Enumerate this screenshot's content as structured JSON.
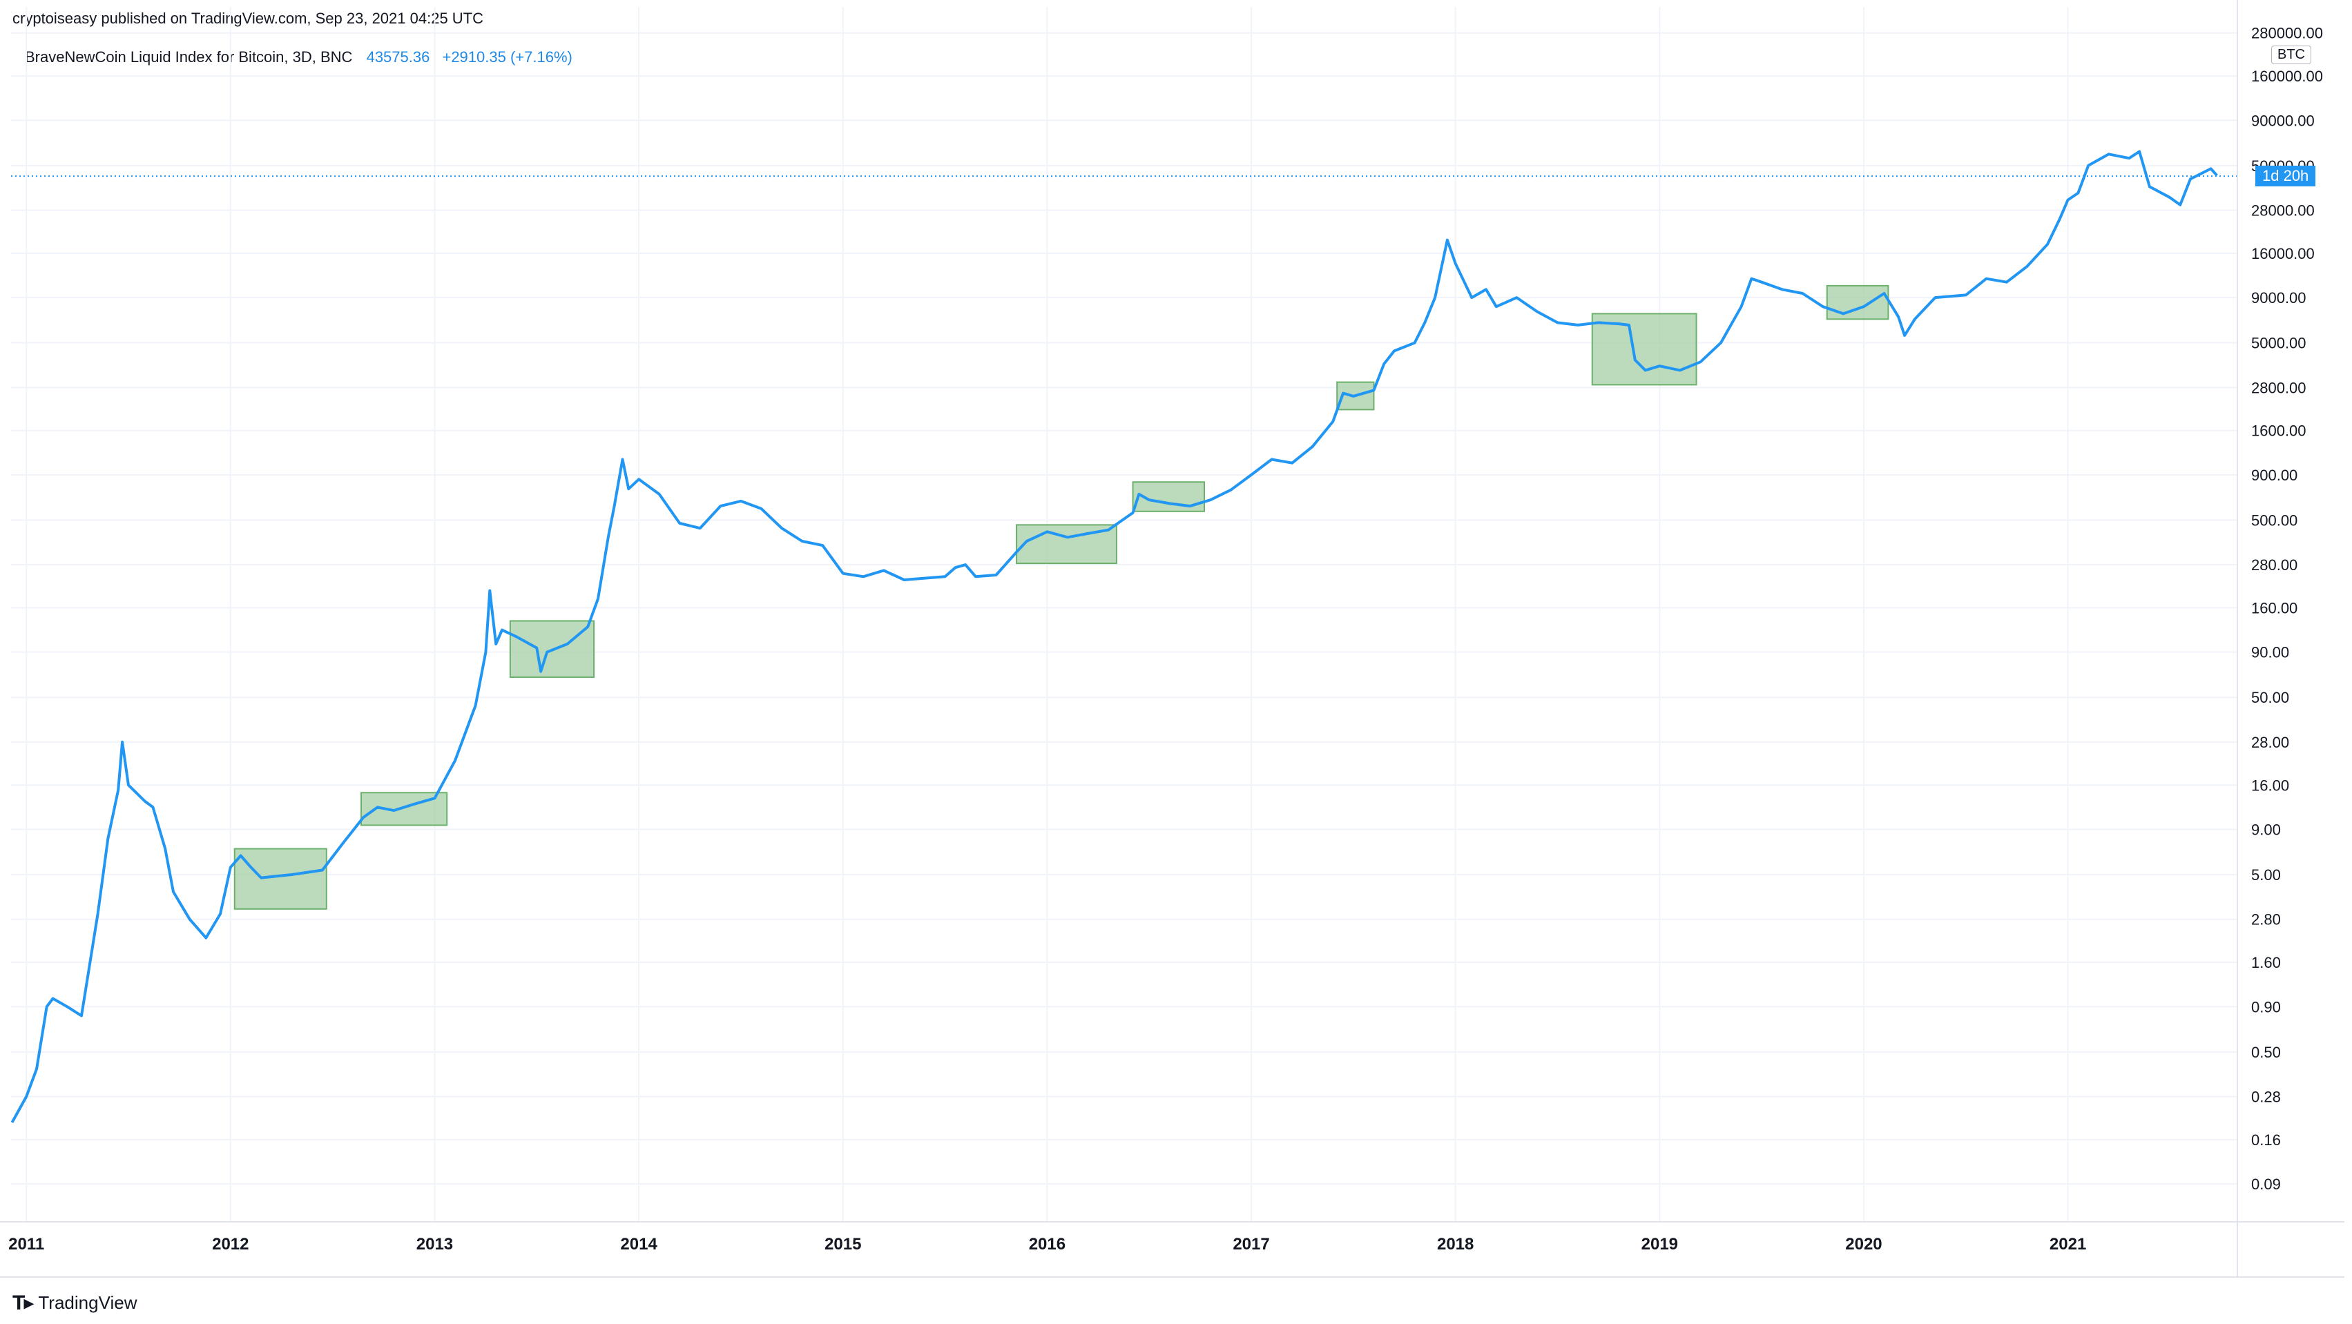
{
  "header": {
    "published_line": "cryptoiseasy published on TradingView.com, Sep 23, 2021 04:25 UTC",
    "brand": "TradingView",
    "brand_logo": "tradingview-logo"
  },
  "legend": {
    "symbol": "BraveNewCoin Liquid Index for Bitcoin, 3D, BNC",
    "last": "43575.36",
    "change": "+2910.35 (+7.16%)"
  },
  "price_scale": {
    "currency_tag": "BTC",
    "countdown": "1d 20h",
    "countdown_color": "#2196f3"
  },
  "chart_data": {
    "type": "line",
    "title": "BraveNewCoin Liquid Index for Bitcoin, 3D, BNC",
    "scale": "log",
    "line_color": "#2196f3",
    "grid": true,
    "current_value": 43575.36,
    "xlim": [
      2010.925,
      2021.83
    ],
    "ylim": [
      0.055,
      300000
    ],
    "y_ticks": [
      0.09,
      0.16,
      0.28,
      0.5,
      0.9,
      1.6,
      2.8,
      5.0,
      9.0,
      16.0,
      28.0,
      50.0,
      90.0,
      160.0,
      280.0,
      500.0,
      900.0,
      1600.0,
      2800.0,
      5000.0,
      9000.0,
      16000.0,
      28000.0,
      50000.0,
      90000.0,
      160000.0,
      280000.0
    ],
    "y_tick_labels": [
      "0.09",
      "0.16",
      "0.28",
      "0.50",
      "0.90",
      "1.60",
      "2.80",
      "5.00",
      "9.00",
      "16.00",
      "28.00",
      "50.00",
      "90.00",
      "160.00",
      "280.00",
      "500.00",
      "900.00",
      "1600.00",
      "2800.00",
      "5000.00",
      "9000.00",
      "16000.00",
      "28000.00",
      "50000.00",
      "90000.00",
      "160000.00",
      "280000.00"
    ],
    "x_ticks": [
      2011,
      2012,
      2013,
      2014,
      2015,
      2016,
      2017,
      2018,
      2019,
      2020,
      2021
    ],
    "x_tick_labels": [
      "2011",
      "2012",
      "2013",
      "2014",
      "2015",
      "2016",
      "2017",
      "2018",
      "2019",
      "2020",
      "2021"
    ],
    "points": [
      [
        2010.93,
        0.2
      ],
      [
        2011.0,
        0.28
      ],
      [
        2011.05,
        0.4
      ],
      [
        2011.1,
        0.9
      ],
      [
        2011.13,
        1.0
      ],
      [
        2011.2,
        0.9
      ],
      [
        2011.27,
        0.8
      ],
      [
        2011.35,
        3.0
      ],
      [
        2011.4,
        8.0
      ],
      [
        2011.45,
        15
      ],
      [
        2011.47,
        28
      ],
      [
        2011.5,
        16
      ],
      [
        2011.58,
        13
      ],
      [
        2011.62,
        12
      ],
      [
        2011.68,
        7
      ],
      [
        2011.72,
        4.0
      ],
      [
        2011.8,
        2.8
      ],
      [
        2011.88,
        2.2
      ],
      [
        2011.95,
        3.0
      ],
      [
        2012.0,
        5.5
      ],
      [
        2012.05,
        6.4
      ],
      [
        2012.1,
        5.5
      ],
      [
        2012.15,
        4.8
      ],
      [
        2012.3,
        5.0
      ],
      [
        2012.45,
        5.3
      ],
      [
        2012.55,
        7.5
      ],
      [
        2012.65,
        10.5
      ],
      [
        2012.72,
        12
      ],
      [
        2012.8,
        11.5
      ],
      [
        2012.9,
        12.5
      ],
      [
        2013.0,
        13.5
      ],
      [
        2013.1,
        22
      ],
      [
        2013.2,
        45
      ],
      [
        2013.25,
        90
      ],
      [
        2013.27,
        200
      ],
      [
        2013.3,
        100
      ],
      [
        2013.33,
        120
      ],
      [
        2013.4,
        110
      ],
      [
        2013.5,
        95
      ],
      [
        2013.52,
        70
      ],
      [
        2013.55,
        90
      ],
      [
        2013.65,
        100
      ],
      [
        2013.75,
        125
      ],
      [
        2013.8,
        180
      ],
      [
        2013.85,
        400
      ],
      [
        2013.88,
        600
      ],
      [
        2013.92,
        1100
      ],
      [
        2013.95,
        750
      ],
      [
        2014.0,
        850
      ],
      [
        2014.1,
        700
      ],
      [
        2014.2,
        480
      ],
      [
        2014.3,
        450
      ],
      [
        2014.4,
        600
      ],
      [
        2014.5,
        640
      ],
      [
        2014.6,
        580
      ],
      [
        2014.7,
        450
      ],
      [
        2014.8,
        380
      ],
      [
        2014.9,
        360
      ],
      [
        2015.0,
        250
      ],
      [
        2015.1,
        240
      ],
      [
        2015.2,
        260
      ],
      [
        2015.3,
        230
      ],
      [
        2015.5,
        240
      ],
      [
        2015.55,
        270
      ],
      [
        2015.6,
        280
      ],
      [
        2015.65,
        240
      ],
      [
        2015.75,
        245
      ],
      [
        2015.85,
        330
      ],
      [
        2015.9,
        380
      ],
      [
        2016.0,
        430
      ],
      [
        2016.1,
        400
      ],
      [
        2016.2,
        420
      ],
      [
        2016.3,
        440
      ],
      [
        2016.42,
        550
      ],
      [
        2016.45,
        700
      ],
      [
        2016.5,
        650
      ],
      [
        2016.6,
        620
      ],
      [
        2016.7,
        600
      ],
      [
        2016.8,
        650
      ],
      [
        2016.9,
        740
      ],
      [
        2017.0,
        900
      ],
      [
        2017.1,
        1100
      ],
      [
        2017.2,
        1050
      ],
      [
        2017.3,
        1300
      ],
      [
        2017.4,
        1800
      ],
      [
        2017.45,
        2600
      ],
      [
        2017.5,
        2500
      ],
      [
        2017.6,
        2700
      ],
      [
        2017.65,
        3800
      ],
      [
        2017.7,
        4500
      ],
      [
        2017.8,
        5000
      ],
      [
        2017.85,
        6500
      ],
      [
        2017.9,
        9000
      ],
      [
        2017.96,
        19000
      ],
      [
        2018.0,
        14000
      ],
      [
        2018.08,
        9000
      ],
      [
        2018.15,
        10000
      ],
      [
        2018.2,
        8000
      ],
      [
        2018.3,
        9000
      ],
      [
        2018.4,
        7500
      ],
      [
        2018.5,
        6500
      ],
      [
        2018.6,
        6300
      ],
      [
        2018.7,
        6500
      ],
      [
        2018.8,
        6400
      ],
      [
        2018.85,
        6300
      ],
      [
        2018.88,
        4000
      ],
      [
        2018.93,
        3500
      ],
      [
        2019.0,
        3700
      ],
      [
        2019.1,
        3500
      ],
      [
        2019.2,
        3900
      ],
      [
        2019.3,
        5000
      ],
      [
        2019.4,
        8000
      ],
      [
        2019.45,
        11500
      ],
      [
        2019.5,
        11000
      ],
      [
        2019.6,
        10000
      ],
      [
        2019.7,
        9500
      ],
      [
        2019.8,
        8000
      ],
      [
        2019.9,
        7300
      ],
      [
        2020.0,
        8000
      ],
      [
        2020.1,
        9500
      ],
      [
        2020.17,
        7000
      ],
      [
        2020.2,
        5500
      ],
      [
        2020.25,
        6800
      ],
      [
        2020.35,
        9000
      ],
      [
        2020.5,
        9300
      ],
      [
        2020.6,
        11500
      ],
      [
        2020.7,
        11000
      ],
      [
        2020.8,
        13500
      ],
      [
        2020.9,
        18000
      ],
      [
        2020.96,
        25000
      ],
      [
        2021.0,
        32000
      ],
      [
        2021.05,
        35000
      ],
      [
        2021.1,
        50000
      ],
      [
        2021.2,
        58000
      ],
      [
        2021.3,
        55000
      ],
      [
        2021.35,
        60000
      ],
      [
        2021.4,
        38000
      ],
      [
        2021.5,
        33000
      ],
      [
        2021.55,
        30000
      ],
      [
        2021.6,
        42000
      ],
      [
        2021.7,
        48000
      ],
      [
        2021.73,
        44000
      ]
    ],
    "highlight_boxes": [
      {
        "x0": 2012.02,
        "x1": 2012.47,
        "y0": 3.2,
        "y1": 7.0
      },
      {
        "x0": 2012.64,
        "x1": 2013.06,
        "y0": 9.5,
        "y1": 14.5
      },
      {
        "x0": 2013.37,
        "x1": 2013.78,
        "y0": 65,
        "y1": 135
      },
      {
        "x0": 2015.85,
        "x1": 2016.34,
        "y0": 285,
        "y1": 470
      },
      {
        "x0": 2016.42,
        "x1": 2016.77,
        "y0": 560,
        "y1": 820
      },
      {
        "x0": 2017.42,
        "x1": 2017.6,
        "y0": 2100,
        "y1": 3000
      },
      {
        "x0": 2018.67,
        "x1": 2019.18,
        "y0": 2900,
        "y1": 7300
      },
      {
        "x0": 2019.82,
        "x1": 2020.12,
        "y0": 6800,
        "y1": 10500
      }
    ],
    "highlight_color": "#9fcc9f"
  }
}
